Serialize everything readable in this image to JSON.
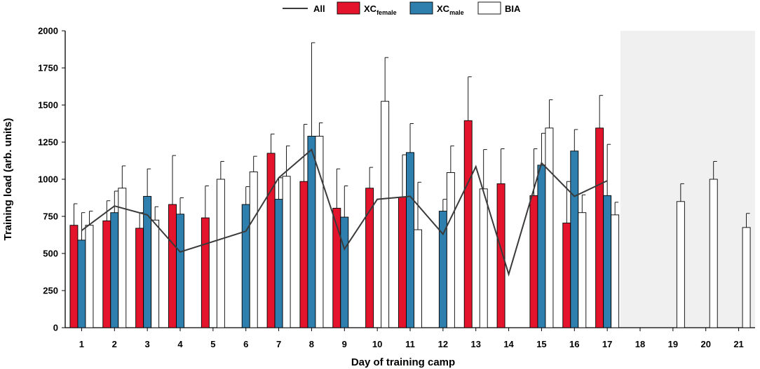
{
  "chart_data": {
    "type": "bar",
    "title": "",
    "xlabel": "Day of training camp",
    "ylabel": "Training load (arb. units)",
    "ylim": [
      0,
      2000
    ],
    "yticks": [
      0,
      250,
      500,
      750,
      1000,
      1250,
      1500,
      1750,
      2000
    ],
    "categories": [
      "1",
      "2",
      "3",
      "4",
      "5",
      "6",
      "7",
      "8",
      "9",
      "10",
      "11",
      "12",
      "13",
      "14",
      "15",
      "16",
      "17",
      "18",
      "19",
      "20",
      "21"
    ],
    "shaded_from_day": "18",
    "series": [
      {
        "name": "XC_female",
        "label": "XC",
        "subscript": "female",
        "color": "#e3142b",
        "values": [
          690,
          720,
          670,
          830,
          740,
          null,
          1175,
          985,
          805,
          940,
          880,
          null,
          1395,
          970,
          890,
          705,
          1345,
          null,
          null,
          null,
          null
        ],
        "errors": [
          145,
          135,
          105,
          330,
          215,
          null,
          130,
          385,
          265,
          140,
          285,
          null,
          295,
          235,
          315,
          280,
          220,
          null,
          null,
          null,
          null
        ]
      },
      {
        "name": "XC_male",
        "label": "XC",
        "subscript": "male",
        "color": "#2e7fad",
        "values": [
          590,
          775,
          885,
          765,
          null,
          830,
          865,
          1290,
          745,
          null,
          1180,
          785,
          null,
          null,
          1095,
          1190,
          890,
          null,
          null,
          null,
          null
        ],
        "errors": [
          185,
          145,
          185,
          110,
          null,
          120,
          145,
          630,
          210,
          null,
          195,
          80,
          null,
          null,
          215,
          145,
          345,
          null,
          null,
          null,
          null
        ],
        "legend_line_color": "#000000"
      },
      {
        "name": "BIA",
        "label": "BIA",
        "color": "#ffffff",
        "values": [
          690,
          940,
          725,
          null,
          1000,
          1050,
          1020,
          1290,
          null,
          1525,
          660,
          1045,
          935,
          null,
          1345,
          775,
          760,
          null,
          850,
          1000,
          675
        ],
        "errors": [
          95,
          150,
          90,
          null,
          120,
          105,
          205,
          90,
          null,
          295,
          320,
          180,
          265,
          null,
          190,
          120,
          85,
          null,
          120,
          120,
          95
        ]
      }
    ],
    "line_series": {
      "name": "All",
      "color": "#3a3a3a",
      "points": [
        {
          "day": 1,
          "value": 655
        },
        {
          "day": 2,
          "value": 820
        },
        {
          "day": 3,
          "value": 760
        },
        {
          "day": 4,
          "value": 510
        },
        {
          "day": 6,
          "value": 650
        },
        {
          "day": 7,
          "value": 1010
        },
        {
          "day": 8,
          "value": 1200
        },
        {
          "day": 9,
          "value": 530
        },
        {
          "day": 10,
          "value": 865
        },
        {
          "day": 11,
          "value": 885
        },
        {
          "day": 12,
          "value": 630
        },
        {
          "day": 13,
          "value": 1085
        },
        {
          "day": 14,
          "value": 360
        },
        {
          "day": 15,
          "value": 1110
        },
        {
          "day": 16,
          "value": 885
        },
        {
          "day": 17,
          "value": 990
        }
      ]
    },
    "legend": {
      "position": "top-center",
      "entries": [
        {
          "kind": "line",
          "label": "All",
          "sub": ""
        },
        {
          "kind": "box",
          "label": "XC",
          "sub": "female"
        },
        {
          "kind": "box",
          "label": "XC",
          "sub": "male"
        },
        {
          "kind": "box",
          "label": "BIA",
          "sub": ""
        }
      ]
    }
  },
  "colors": {
    "female": "#e3142b",
    "male": "#2e7fad",
    "bia": "#ffffff",
    "line": "#3a3a3a",
    "shade": "#f0f0f0"
  }
}
